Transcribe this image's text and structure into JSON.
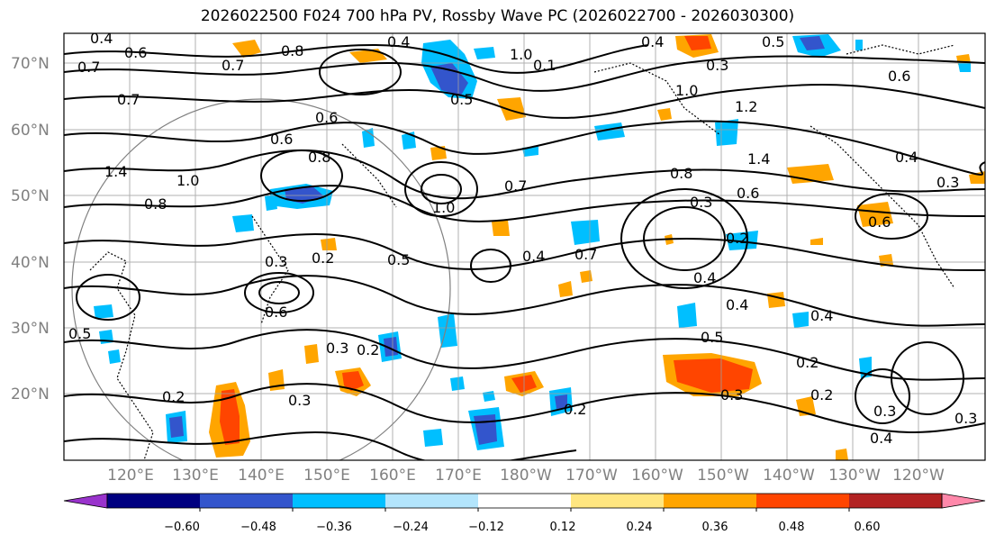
{
  "title": "2026022500 F024 700 hPa PV, Rossby Wave PC (2026022700 - 2026030300)",
  "lat_labels": [
    "70°N",
    "60°N",
    "50°N",
    "40°N",
    "30°N",
    "20°N"
  ],
  "lon_labels": [
    "120°E",
    "130°E",
    "140°E",
    "150°E",
    "160°E",
    "170°E",
    "180°W",
    "170°W",
    "160°W",
    "150°W",
    "140°W",
    "130°W",
    "120°W"
  ],
  "colorbar": {
    "ticks": [
      "−0.60",
      "−0.48",
      "−0.36",
      "−0.24",
      "−0.12",
      "0.12",
      "0.24",
      "0.36",
      "0.48",
      "0.60"
    ],
    "colors": [
      "#9933cc",
      "#000080",
      "#3355cc",
      "#00bfff",
      "#b3e5fc",
      "#ffffff",
      "#ffe680",
      "#ffa500",
      "#ff4500",
      "#b22222",
      "#ff88aa"
    ]
  },
  "contour_labels": [
    {
      "text": "0.4"
    },
    {
      "text": "0.6"
    },
    {
      "text": "0.7"
    },
    {
      "text": "0.8"
    },
    {
      "text": "0.4"
    },
    {
      "text": "1.0"
    },
    {
      "text": "0.1"
    },
    {
      "text": "0.4"
    },
    {
      "text": "0.3"
    },
    {
      "text": "0.5"
    },
    {
      "text": "0.7"
    },
    {
      "text": "1.0"
    },
    {
      "text": "1.2"
    },
    {
      "text": "0.6"
    },
    {
      "text": "0.7"
    },
    {
      "text": "0.6"
    },
    {
      "text": "0.5"
    },
    {
      "text": "1.4"
    },
    {
      "text": "1.0"
    },
    {
      "text": "0.8"
    },
    {
      "text": "0.7"
    },
    {
      "text": "0.8"
    },
    {
      "text": "0.6"
    },
    {
      "text": "1.4"
    },
    {
      "text": "0.4"
    },
    {
      "text": "1.0"
    },
    {
      "text": "0.3"
    },
    {
      "text": "0.6"
    },
    {
      "text": "0.3"
    },
    {
      "text": "0.2"
    },
    {
      "text": "0.5"
    },
    {
      "text": "0.4"
    },
    {
      "text": "0.7"
    },
    {
      "text": "0.2"
    },
    {
      "text": "0.4"
    },
    {
      "text": "0.4"
    },
    {
      "text": "0.5"
    },
    {
      "text": "0.4"
    },
    {
      "text": "0.3"
    },
    {
      "text": "0.2"
    },
    {
      "text": "0.3"
    },
    {
      "text": "0.2"
    },
    {
      "text": "0.3"
    },
    {
      "text": "0.2"
    },
    {
      "text": "0.2"
    },
    {
      "text": "0.3"
    },
    {
      "text": "0.2"
    },
    {
      "text": "0.4"
    },
    {
      "text": "0.3"
    },
    {
      "text": "0.5"
    },
    {
      "text": "0.6"
    },
    {
      "text": "0.8"
    },
    {
      "text": "0.3"
    },
    {
      "text": "0.6"
    }
  ]
}
